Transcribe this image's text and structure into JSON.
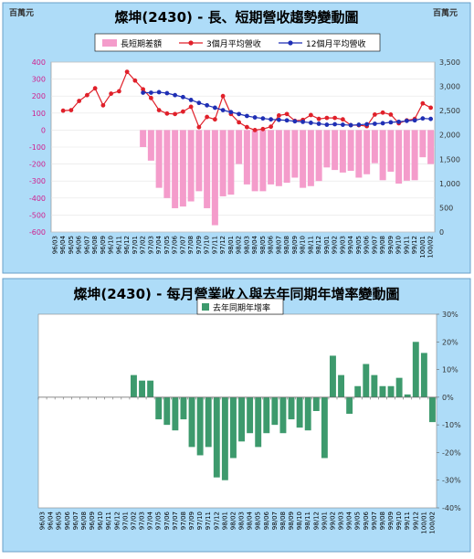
{
  "chart_data": [
    {
      "type": "bar+line",
      "title": "燦坤(2430) - 長、短期營收趨勢變動圖",
      "y_left_unit": "百萬元",
      "y_right_unit": "百萬元",
      "ylim_left": [
        -600,
        400
      ],
      "ylim_right": [
        0,
        3500
      ],
      "yticks_left": [
        "400",
        "300",
        "200",
        "100",
        "0",
        "-100",
        "-200",
        "-300",
        "-400",
        "-500",
        "-600"
      ],
      "yticks_right": [
        "3,500",
        "3,000",
        "2,500",
        "2,000",
        "1,500",
        "1,000",
        "500",
        "0"
      ],
      "legend": {
        "bar": "長短期差額",
        "line3": "3個月平均營收",
        "line12": "12個月平均營收"
      },
      "colors": {
        "bar": "#f49ccb",
        "line3": "#e0202a",
        "line12": "#1f2fb4"
      },
      "categories": [
        "96/03",
        "96/04",
        "96/05",
        "96/06",
        "96/07",
        "96/08",
        "96/09",
        "96/10",
        "96/11",
        "96/12",
        "97/01",
        "97/02",
        "97/03",
        "97/04",
        "97/05",
        "97/06",
        "97/07",
        "97/08",
        "97/09",
        "97/10",
        "97/11",
        "97/12",
        "98/01",
        "98/02",
        "98/03",
        "98/04",
        "98/05",
        "98/06",
        "98/07",
        "98/08",
        "98/09",
        "98/10",
        "98/11",
        "98/12",
        "99/01",
        "99/02",
        "99/03",
        "99/04",
        "99/05",
        "99/06",
        "99/07",
        "99/08",
        "99/09",
        "99/10",
        "99/11",
        "99/12",
        "100/01",
        "100/02"
      ],
      "series": [
        {
          "name": "長短期差額",
          "kind": "bar",
          "values": [
            null,
            null,
            null,
            null,
            null,
            null,
            null,
            null,
            null,
            null,
            null,
            -100,
            -180,
            -340,
            -400,
            -460,
            -450,
            -420,
            -360,
            -460,
            -560,
            -390,
            -380,
            -200,
            -320,
            -360,
            -360,
            -320,
            -330,
            -310,
            -280,
            -340,
            -330,
            -300,
            -220,
            -235,
            -250,
            -240,
            -280,
            -260,
            -195,
            -295,
            -245,
            -315,
            -298,
            -295,
            -160,
            -200
          ]
        },
        {
          "name": "3個月平均營收",
          "kind": "line",
          "values": [
            null,
            2500,
            2510,
            2700,
            2820,
            2960,
            2610,
            2850,
            2900,
            3300,
            3120,
            2940,
            2760,
            2510,
            2440,
            2430,
            2480,
            2580,
            2160,
            2370,
            2320,
            2800,
            2430,
            2260,
            2160,
            2100,
            2120,
            2170,
            2400,
            2430,
            2290,
            2310,
            2410,
            2330,
            2350,
            2350,
            2320,
            2200,
            2200,
            2180,
            2420,
            2460,
            2420,
            2240,
            2300,
            2330,
            2650,
            2560
          ]
        },
        {
          "name": "12個月平均營收",
          "kind": "line",
          "values": [
            null,
            null,
            null,
            null,
            null,
            null,
            null,
            null,
            null,
            null,
            null,
            2870,
            2870,
            2880,
            2860,
            2820,
            2780,
            2720,
            2660,
            2610,
            2560,
            2510,
            2470,
            2430,
            2390,
            2360,
            2340,
            2320,
            2310,
            2300,
            2280,
            2270,
            2250,
            2230,
            2210,
            2220,
            2210,
            2200,
            2210,
            2220,
            2230,
            2240,
            2260,
            2270,
            2290,
            2300,
            2340,
            2330
          ]
        }
      ]
    },
    {
      "type": "bar",
      "title": "燦坤(2430) -  每月營業收入與去年同期年增率變動圖",
      "legend": "去年同期年增率",
      "color": "#3d9a6d",
      "ylim": [
        -40,
        30
      ],
      "yticks": [
        "30%",
        "20%",
        "10%",
        "0%",
        "-10%",
        "-20%",
        "-30%",
        "-40%"
      ],
      "categories": [
        "96/03",
        "96/04",
        "96/05",
        "96/06",
        "96/07",
        "96/08",
        "96/09",
        "96/10",
        "96/11",
        "96/12",
        "97/01",
        "97/02",
        "97/03",
        "97/04",
        "97/05",
        "97/06",
        "97/07",
        "97/08",
        "97/09",
        "97/10",
        "97/11",
        "97/12",
        "98/01",
        "98/02",
        "98/03",
        "98/04",
        "98/05",
        "98/06",
        "98/07",
        "98/08",
        "98/09",
        "98/10",
        "98/11",
        "98/12",
        "99/01",
        "99/02",
        "99/03",
        "99/04",
        "99/05",
        "99/06",
        "99/07",
        "99/08",
        "99/09",
        "99/10",
        "99/11",
        "99/12",
        "100/01",
        "100/02"
      ],
      "values": [
        0,
        0,
        0,
        0,
        0,
        0,
        0,
        0,
        0,
        0,
        0,
        8,
        6,
        6,
        -8,
        -10,
        -12,
        -8,
        -18,
        -21,
        -18,
        -29,
        -30,
        -22,
        -16,
        -13,
        -18,
        -13,
        -10,
        -13,
        -8,
        -11,
        -12,
        -5,
        -22,
        15,
        8,
        -6,
        4,
        12,
        8,
        4,
        4,
        7,
        1,
        20,
        16,
        -9
      ]
    }
  ]
}
